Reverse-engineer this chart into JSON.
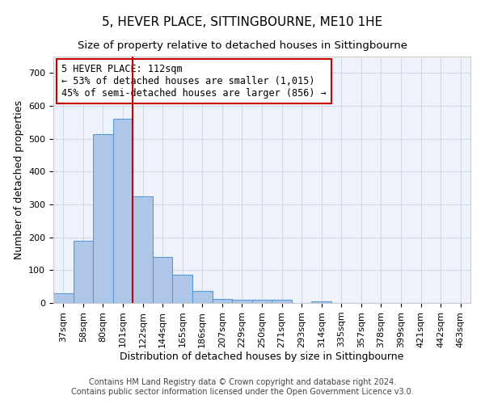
{
  "title": "5, HEVER PLACE, SITTINGBOURNE, ME10 1HE",
  "subtitle": "Size of property relative to detached houses in Sittingbourne",
  "xlabel": "Distribution of detached houses by size in Sittingbourne",
  "ylabel": "Number of detached properties",
  "footer_line1": "Contains HM Land Registry data © Crown copyright and database right 2024.",
  "footer_line2": "Contains public sector information licensed under the Open Government Licence v3.0.",
  "categories": [
    "37sqm",
    "58sqm",
    "80sqm",
    "101sqm",
    "122sqm",
    "144sqm",
    "165sqm",
    "186sqm",
    "207sqm",
    "229sqm",
    "250sqm",
    "271sqm",
    "293sqm",
    "314sqm",
    "335sqm",
    "357sqm",
    "378sqm",
    "399sqm",
    "421sqm",
    "442sqm",
    "463sqm"
  ],
  "values": [
    30,
    190,
    515,
    560,
    325,
    140,
    85,
    38,
    13,
    10,
    10,
    10,
    0,
    5,
    0,
    0,
    0,
    0,
    0,
    0,
    0
  ],
  "bar_color": "#aec6e8",
  "bar_edge_color": "#5b9bd5",
  "bar_edge_width": 0.8,
  "grid_color": "#d0d8e8",
  "background_color": "#eef2fa",
  "red_line_x": 3.5,
  "red_line_color": "#cc0000",
  "annotation_line1": "5 HEVER PLACE: 112sqm",
  "annotation_line2": "← 53% of detached houses are smaller (1,015)",
  "annotation_line3": "45% of semi-detached houses are larger (856) →",
  "annotation_box_color": "#ffffff",
  "annotation_border_color": "#cc0000",
  "ylim": [
    0,
    750
  ],
  "yticks": [
    0,
    100,
    200,
    300,
    400,
    500,
    600,
    700
  ],
  "title_fontsize": 11,
  "subtitle_fontsize": 9.5,
  "xlabel_fontsize": 9,
  "ylabel_fontsize": 9,
  "tick_fontsize": 8,
  "annotation_fontsize": 8.5,
  "footer_fontsize": 7
}
